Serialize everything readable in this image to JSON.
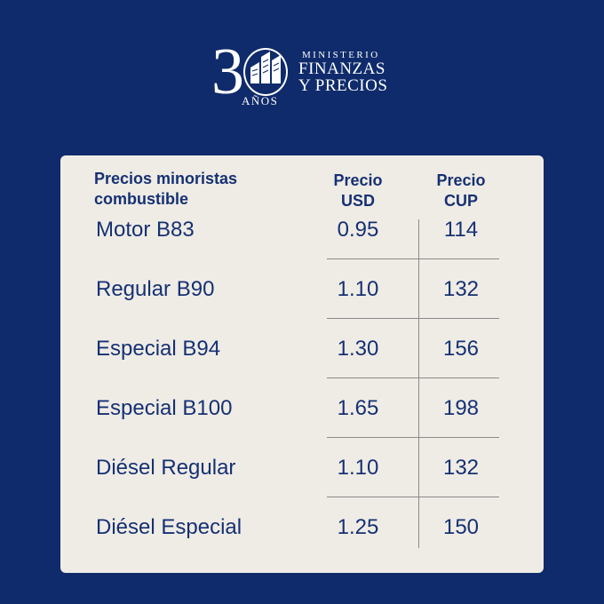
{
  "logo": {
    "digits": "3",
    "years_label": "AÑOS",
    "line1": "MINISTERIO",
    "line2": "FINANZAS",
    "line3": "Y PRECIOS",
    "icon": "building-icon"
  },
  "table": {
    "headers": {
      "product_line1": "Precios minoristas",
      "product_line2": "combustible",
      "usd_line1": "Precio",
      "usd_line2": "USD",
      "cup_line1": "Precio",
      "cup_line2": "CUP"
    },
    "rows": [
      {
        "name": "Motor B83",
        "usd": "0.95",
        "cup": "114"
      },
      {
        "name": "Regular B90",
        "usd": "1.10",
        "cup": "132"
      },
      {
        "name": "Especial B94",
        "usd": "1.30",
        "cup": "156"
      },
      {
        "name": "Especial B100",
        "usd": "1.65",
        "cup": "198"
      },
      {
        "name": "Diésel Regular",
        "usd": "1.10",
        "cup": "132"
      },
      {
        "name": "Diésel Especial",
        "usd": "1.25",
        "cup": "150"
      }
    ]
  },
  "colors": {
    "background": "#0f2b6b",
    "card": "#efece6",
    "text": "#163173"
  }
}
